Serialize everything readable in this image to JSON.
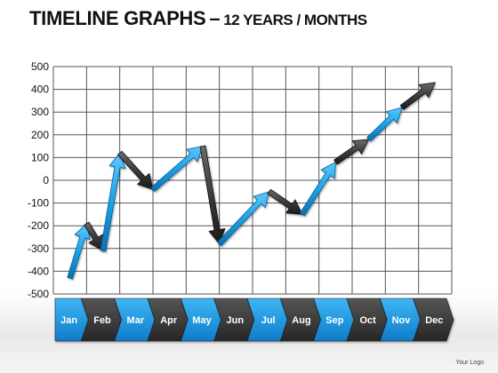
{
  "title": {
    "main": "TIMELINE  GRAPHS",
    "dash": "–",
    "sub": "12 YEARS / MONTHS"
  },
  "footer": {
    "logo_text": "Your Logo"
  },
  "colors": {
    "blue": "#1aa3e8",
    "dark": "#3c3c3c",
    "grid": "#555555",
    "blue_tab": "#1e96de",
    "dark_tab": "#3a3a3a"
  },
  "chart_data": {
    "type": "line",
    "title": "TIMELINE  GRAPHS – 12 YEARS / MONTHS",
    "xlabel": "",
    "ylabel": "",
    "categories": [
      "Jan",
      "Feb",
      "Mar",
      "Apr",
      "May",
      "Jun",
      "Jul",
      "Aug",
      "Sep",
      "Oct",
      "Nov",
      "Dec"
    ],
    "ylim": [
      -500,
      500
    ],
    "yticks": [
      500,
      400,
      300,
      200,
      100,
      0,
      -100,
      -200,
      -300,
      -400,
      -500
    ],
    "grid": true,
    "points": [
      {
        "x": "Jan",
        "y": -430
      },
      {
        "x": "Jan-Feb",
        "y": -190
      },
      {
        "x": "Feb",
        "y": -310
      },
      {
        "x": "Feb-Mar",
        "y": 120
      },
      {
        "x": "Mar-Apr",
        "y": -40
      },
      {
        "x": "May",
        "y": 150
      },
      {
        "x": "May-Jun",
        "y": -280
      },
      {
        "x": "Jul",
        "y": -50
      },
      {
        "x": "Aug",
        "y": -150
      },
      {
        "x": "Sep",
        "y": 80
      },
      {
        "x": "Oct",
        "y": 180
      },
      {
        "x": "Nov",
        "y": 320
      },
      {
        "x": "Dec",
        "y": 430
      }
    ],
    "segment_colors": [
      "blue",
      "dark",
      "blue",
      "dark",
      "blue",
      "dark",
      "blue",
      "dark",
      "blue",
      "dark",
      "blue",
      "dark"
    ],
    "tab_colors": [
      "blue",
      "dark",
      "blue",
      "dark",
      "blue",
      "dark",
      "blue",
      "dark",
      "blue",
      "dark",
      "blue",
      "dark"
    ]
  }
}
